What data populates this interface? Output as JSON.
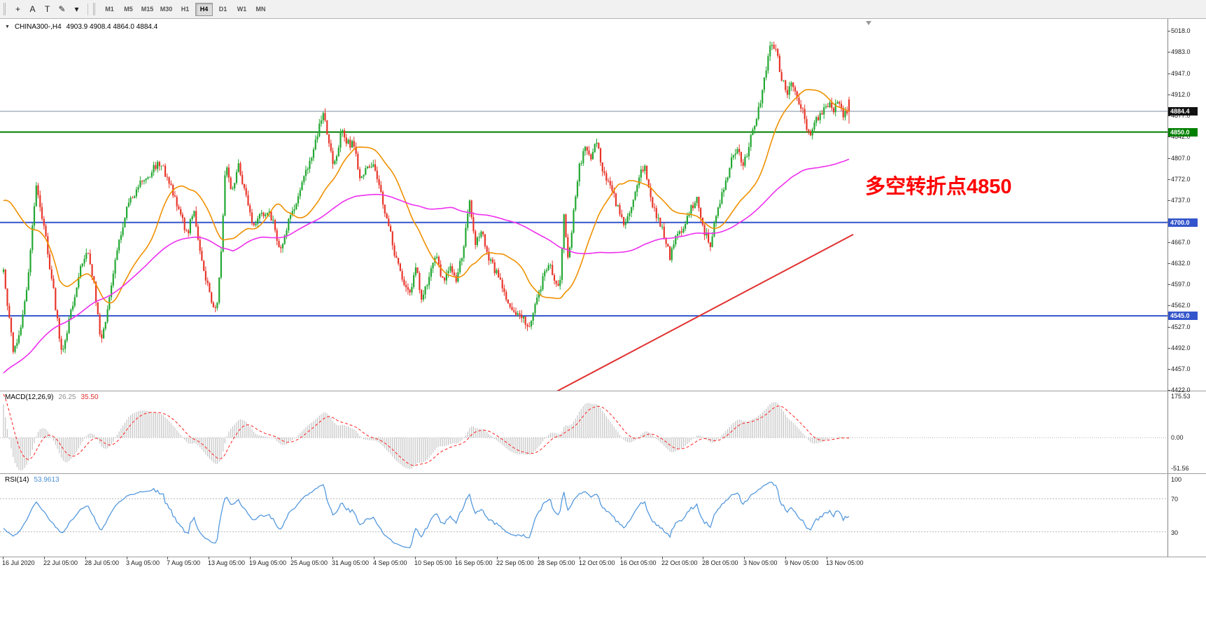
{
  "toolbar": {
    "tools": [
      {
        "name": "crosshair-tool",
        "glyph": "+"
      },
      {
        "name": "text-annotation-tool",
        "glyph": "A"
      },
      {
        "name": "text-label-tool",
        "glyph": "T"
      },
      {
        "name": "drawing-tool",
        "glyph": "✎"
      },
      {
        "name": "drawing-tool-dropdown",
        "glyph": "▾"
      }
    ],
    "timeframe_buttons": [
      "M1",
      "M5",
      "M15",
      "M30",
      "H1",
      "H4",
      "D1",
      "W1",
      "MN"
    ],
    "active_timeframe": "H4"
  },
  "main_chart": {
    "expand_icon": "▼",
    "symbol_label": "CHINA300-,H4",
    "ohlc_label": "4903.9 4908.4 4864.0 4884.4",
    "annotation": {
      "text": "多空转折点4850",
      "color": "#FF0000"
    },
    "price_axis_labels": [
      "5018.0",
      "4983.0",
      "4947.0",
      "4912.0",
      "4877.0",
      "4842.0",
      "4807.0",
      "4772.0",
      "4737.0",
      "4702.0",
      "4667.0",
      "4632.0",
      "4597.0",
      "4562.0",
      "4527.0",
      "4492.0",
      "4457.0",
      "4422.0"
    ],
    "price_badges": [
      {
        "name": "current-price-badge",
        "text": "4884.4",
        "price": 4884.4,
        "bg": "#111111"
      },
      {
        "name": "level-4850-badge",
        "text": "4850.0",
        "price": 4850.0,
        "bg": "#008000"
      },
      {
        "name": "level-4700-badge",
        "text": "4700.0",
        "price": 4700.0,
        "bg": "#3355CC"
      },
      {
        "name": "level-4545-badge",
        "text": "4545.0",
        "price": 4545.0,
        "bg": "#3355CC"
      }
    ]
  },
  "macd_panel": {
    "label": "MACD(12,26,9)",
    "value_macd": "26.25",
    "value_signal": "35.50",
    "axis_labels": {
      "top": "175.53",
      "zero": "0.00",
      "bottom": "-51.56"
    }
  },
  "rsi_panel": {
    "label": "RSI(14)",
    "value": "53.9613",
    "axis_labels": [
      "100",
      "70",
      "30"
    ],
    "levels": [
      70,
      30
    ]
  },
  "date_axis": [
    "16 Jul 2020",
    "22 Jul 05:00",
    "28 Jul 05:00",
    "3 Aug 05:00",
    "7 Aug 05:00",
    "13 Aug 05:00",
    "19 Aug 05:00",
    "25 Aug 05:00",
    "31 Aug 05:00",
    "4 Sep 05:00",
    "10 Sep 05:00",
    "16 Sep 05:00",
    "22 Sep 05:00",
    "28 Sep 05:00",
    "12 Oct 05:00",
    "16 Oct 05:00",
    "22 Oct 05:00",
    "28 Oct 05:00",
    "3 Nov 05:00",
    "9 Nov 05:00",
    "13 Nov 05:00"
  ],
  "chart_data": {
    "type": "candlestick",
    "symbol": "CHINA300-",
    "timeframe": "H4",
    "title": "CHINA300-,H4 4903.9 4908.4 4864.0 4884.4",
    "ohlc_current": {
      "open": 4903.9,
      "high": 4908.4,
      "low": 4864.0,
      "close": 4884.4
    },
    "price_axis": {
      "min": 4422.0,
      "max": 5018.0
    },
    "x_range": [
      "16 Jul 2020",
      "17 Nov 2020"
    ],
    "horizontal_lines": [
      {
        "price": 4884.4,
        "color": "#7E8CA0",
        "width": 1
      },
      {
        "price": 4850.0,
        "color": "#007F00",
        "width": 2
      },
      {
        "price": 4700.0,
        "color": "#3355CC",
        "width": 2
      },
      {
        "price": 4545.0,
        "color": "#3355CC",
        "width": 2
      }
    ],
    "trend_line": {
      "color": "#E03030",
      "width": 2,
      "from": {
        "t": 0.648,
        "price": 4415
      },
      "to": {
        "t": 1.005,
        "price": 4680
      }
    },
    "moving_averages": [
      {
        "name": "fast-ma-line",
        "color": "#F09000",
        "period": 30
      },
      {
        "name": "slow-ma-line",
        "color": "#EE30EE",
        "period": 120
      }
    ],
    "candle_colors": {
      "up": "#23A832",
      "down": "#E8362A"
    },
    "price_path": [
      [
        0,
        4615
      ],
      [
        0.006,
        4552
      ],
      [
        0.011,
        4487
      ],
      [
        0.02,
        4520
      ],
      [
        0.028,
        4598
      ],
      [
        0.039,
        4768
      ],
      [
        0.048,
        4690
      ],
      [
        0.058,
        4598
      ],
      [
        0.069,
        4478
      ],
      [
        0.078,
        4542
      ],
      [
        0.09,
        4618
      ],
      [
        0.1,
        4655
      ],
      [
        0.108,
        4590
      ],
      [
        0.115,
        4508
      ],
      [
        0.124,
        4558
      ],
      [
        0.133,
        4648
      ],
      [
        0.145,
        4718
      ],
      [
        0.158,
        4760
      ],
      [
        0.17,
        4778
      ],
      [
        0.186,
        4800
      ],
      [
        0.197,
        4760
      ],
      [
        0.207,
        4722
      ],
      [
        0.217,
        4680
      ],
      [
        0.225,
        4720
      ],
      [
        0.235,
        4638
      ],
      [
        0.245,
        4572
      ],
      [
        0.252,
        4548
      ],
      [
        0.258,
        4660
      ],
      [
        0.263,
        4808
      ],
      [
        0.27,
        4746
      ],
      [
        0.277,
        4798
      ],
      [
        0.287,
        4744
      ],
      [
        0.295,
        4690
      ],
      [
        0.303,
        4710
      ],
      [
        0.312,
        4720
      ],
      [
        0.32,
        4700
      ],
      [
        0.327,
        4650
      ],
      [
        0.335,
        4690
      ],
      [
        0.342,
        4720
      ],
      [
        0.352,
        4760
      ],
      [
        0.362,
        4798
      ],
      [
        0.371,
        4848
      ],
      [
        0.378,
        4886
      ],
      [
        0.385,
        4830
      ],
      [
        0.391,
        4793
      ],
      [
        0.399,
        4850
      ],
      [
        0.407,
        4833
      ],
      [
        0.415,
        4826
      ],
      [
        0.422,
        4773
      ],
      [
        0.43,
        4790
      ],
      [
        0.438,
        4803
      ],
      [
        0.447,
        4740
      ],
      [
        0.455,
        4698
      ],
      [
        0.463,
        4646
      ],
      [
        0.472,
        4598
      ],
      [
        0.48,
        4586
      ],
      [
        0.488,
        4623
      ],
      [
        0.495,
        4570
      ],
      [
        0.503,
        4610
      ],
      [
        0.512,
        4643
      ],
      [
        0.52,
        4598
      ],
      [
        0.528,
        4626
      ],
      [
        0.535,
        4603
      ],
      [
        0.543,
        4650
      ],
      [
        0.551,
        4736
      ],
      [
        0.558,
        4666
      ],
      [
        0.566,
        4688
      ],
      [
        0.574,
        4638
      ],
      [
        0.582,
        4620
      ],
      [
        0.59,
        4593
      ],
      [
        0.598,
        4566
      ],
      [
        0.606,
        4550
      ],
      [
        0.615,
        4543
      ],
      [
        0.623,
        4523
      ],
      [
        0.63,
        4566
      ],
      [
        0.638,
        4606
      ],
      [
        0.645,
        4636
      ],
      [
        0.652,
        4608
      ],
      [
        0.658,
        4598
      ],
      [
        0.663,
        4710
      ],
      [
        0.668,
        4626
      ],
      [
        0.674,
        4716
      ],
      [
        0.68,
        4786
      ],
      [
        0.687,
        4823
      ],
      [
        0.695,
        4810
      ],
      [
        0.702,
        4833
      ],
      [
        0.71,
        4780
      ],
      [
        0.718,
        4758
      ],
      [
        0.726,
        4726
      ],
      [
        0.734,
        4698
      ],
      [
        0.742,
        4720
      ],
      [
        0.75,
        4770
      ],
      [
        0.758,
        4793
      ],
      [
        0.765,
        4738
      ],
      [
        0.772,
        4710
      ],
      [
        0.78,
        4686
      ],
      [
        0.788,
        4643
      ],
      [
        0.795,
        4673
      ],
      [
        0.803,
        4690
      ],
      [
        0.812,
        4720
      ],
      [
        0.82,
        4736
      ],
      [
        0.828,
        4688
      ],
      [
        0.836,
        4666
      ],
      [
        0.843,
        4710
      ],
      [
        0.852,
        4756
      ],
      [
        0.86,
        4800
      ],
      [
        0.868,
        4828
      ],
      [
        0.874,
        4786
      ],
      [
        0.88,
        4820
      ],
      [
        0.887,
        4860
      ],
      [
        0.893,
        4886
      ],
      [
        0.898,
        4920
      ],
      [
        0.904,
        4973
      ],
      [
        0.909,
        5000
      ],
      [
        0.914,
        4983
      ],
      [
        0.92,
        4940
      ],
      [
        0.927,
        4910
      ],
      [
        0.933,
        4933
      ],
      [
        0.94,
        4906
      ],
      [
        0.947,
        4876
      ],
      [
        0.953,
        4843
      ],
      [
        0.96,
        4866
      ],
      [
        0.967,
        4883
      ],
      [
        0.974,
        4900
      ],
      [
        0.981,
        4886
      ],
      [
        0.988,
        4900
      ],
      [
        0.994,
        4878
      ],
      [
        1,
        4884
      ]
    ],
    "generation": {
      "bars": 440,
      "seed": 11,
      "noise": 7,
      "wick": 8,
      "x0": 5,
      "x1": 1213,
      "history": [
        {
          "bars": 120,
          "from": 3940,
          "to": 4290
        },
        {
          "bars": 55,
          "from": 4290,
          "to": 4420
        },
        {
          "bars": 45,
          "from": 4380,
          "to": 4920
        }
      ]
    },
    "macd": {
      "fast": 12,
      "slow": 26,
      "signal": 9,
      "hist_color": "#C4C4C4",
      "signal_color": "#FF2222",
      "current": [
        26.25,
        35.5
      ]
    },
    "rsi": {
      "period": 14,
      "color": "#5599DD",
      "current": 53.9613
    }
  }
}
